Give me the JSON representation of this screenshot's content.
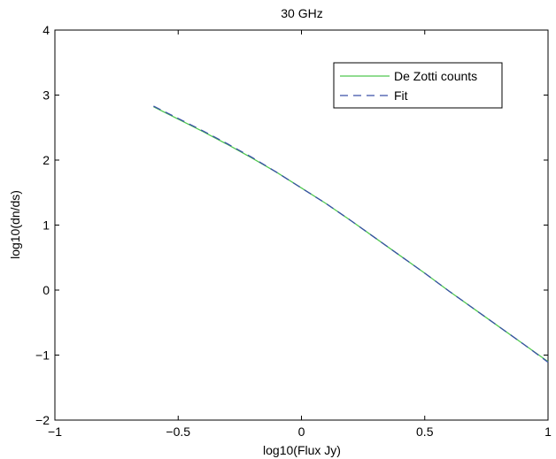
{
  "chart_data": {
    "type": "line",
    "title": "30 GHz",
    "xlabel": "log10(Flux Jy)",
    "ylabel": "log10(dn/ds)",
    "xlim": [
      -1,
      1
    ],
    "ylim": [
      -2,
      4
    ],
    "xticks": [
      -1,
      -0.5,
      0,
      0.5,
      1
    ],
    "xtick_labels": [
      "−1",
      "−0.5",
      "0",
      "0.5",
      "1"
    ],
    "yticks": [
      -2,
      -1,
      0,
      1,
      2,
      3,
      4
    ],
    "ytick_labels": [
      "−2",
      "−1",
      "0",
      "1",
      "2",
      "3",
      "4"
    ],
    "grid": false,
    "legend_position": "top-right",
    "series": [
      {
        "name": "De Zotti counts",
        "color": "#4fc84f",
        "style": "solid",
        "x": [
          -0.6,
          -0.5,
          -0.4,
          -0.3,
          -0.2,
          -0.1,
          0.0,
          0.1,
          0.2,
          0.3,
          0.4,
          0.5,
          0.6,
          0.7,
          0.8,
          0.9,
          1.0
        ],
        "y": [
          2.82,
          2.63,
          2.44,
          2.24,
          2.03,
          1.81,
          1.57,
          1.33,
          1.07,
          0.8,
          0.53,
          0.26,
          -0.02,
          -0.29,
          -0.56,
          -0.83,
          -1.1
        ]
      },
      {
        "name": "Fit",
        "color": "#3a4fa8",
        "style": "dashed",
        "x": [
          -0.6,
          -0.5,
          -0.4,
          -0.3,
          -0.2,
          -0.1,
          0.0,
          0.1,
          0.2,
          0.3,
          0.4,
          0.5,
          0.6,
          0.7,
          0.8,
          0.9,
          1.0
        ],
        "y": [
          2.83,
          2.64,
          2.45,
          2.25,
          2.04,
          1.81,
          1.57,
          1.33,
          1.07,
          0.8,
          0.53,
          0.26,
          -0.02,
          -0.29,
          -0.56,
          -0.83,
          -1.11
        ]
      }
    ]
  }
}
